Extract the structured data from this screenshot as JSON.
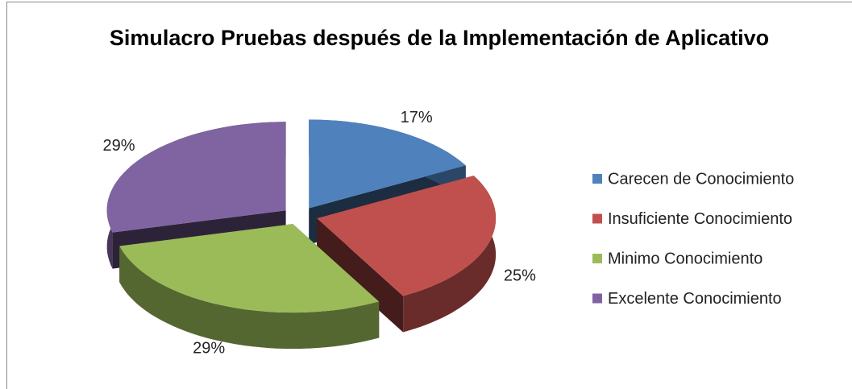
{
  "chart_data": {
    "type": "pie3d",
    "title": "Simulacro Pruebas después de la Implementación de Aplicativo",
    "categories": [
      "Carecen de Conocimiento",
      "Insuficiente Conocimiento",
      "Minimo Conocimiento",
      "Excelente Conocimiento"
    ],
    "values": [
      17,
      25,
      29,
      29
    ],
    "value_labels": [
      "17%",
      "25%",
      "29%",
      "29%"
    ],
    "colors": [
      "#4f81bd",
      "#c0504d",
      "#9bbb59",
      "#8064a2"
    ],
    "legend": "right"
  }
}
